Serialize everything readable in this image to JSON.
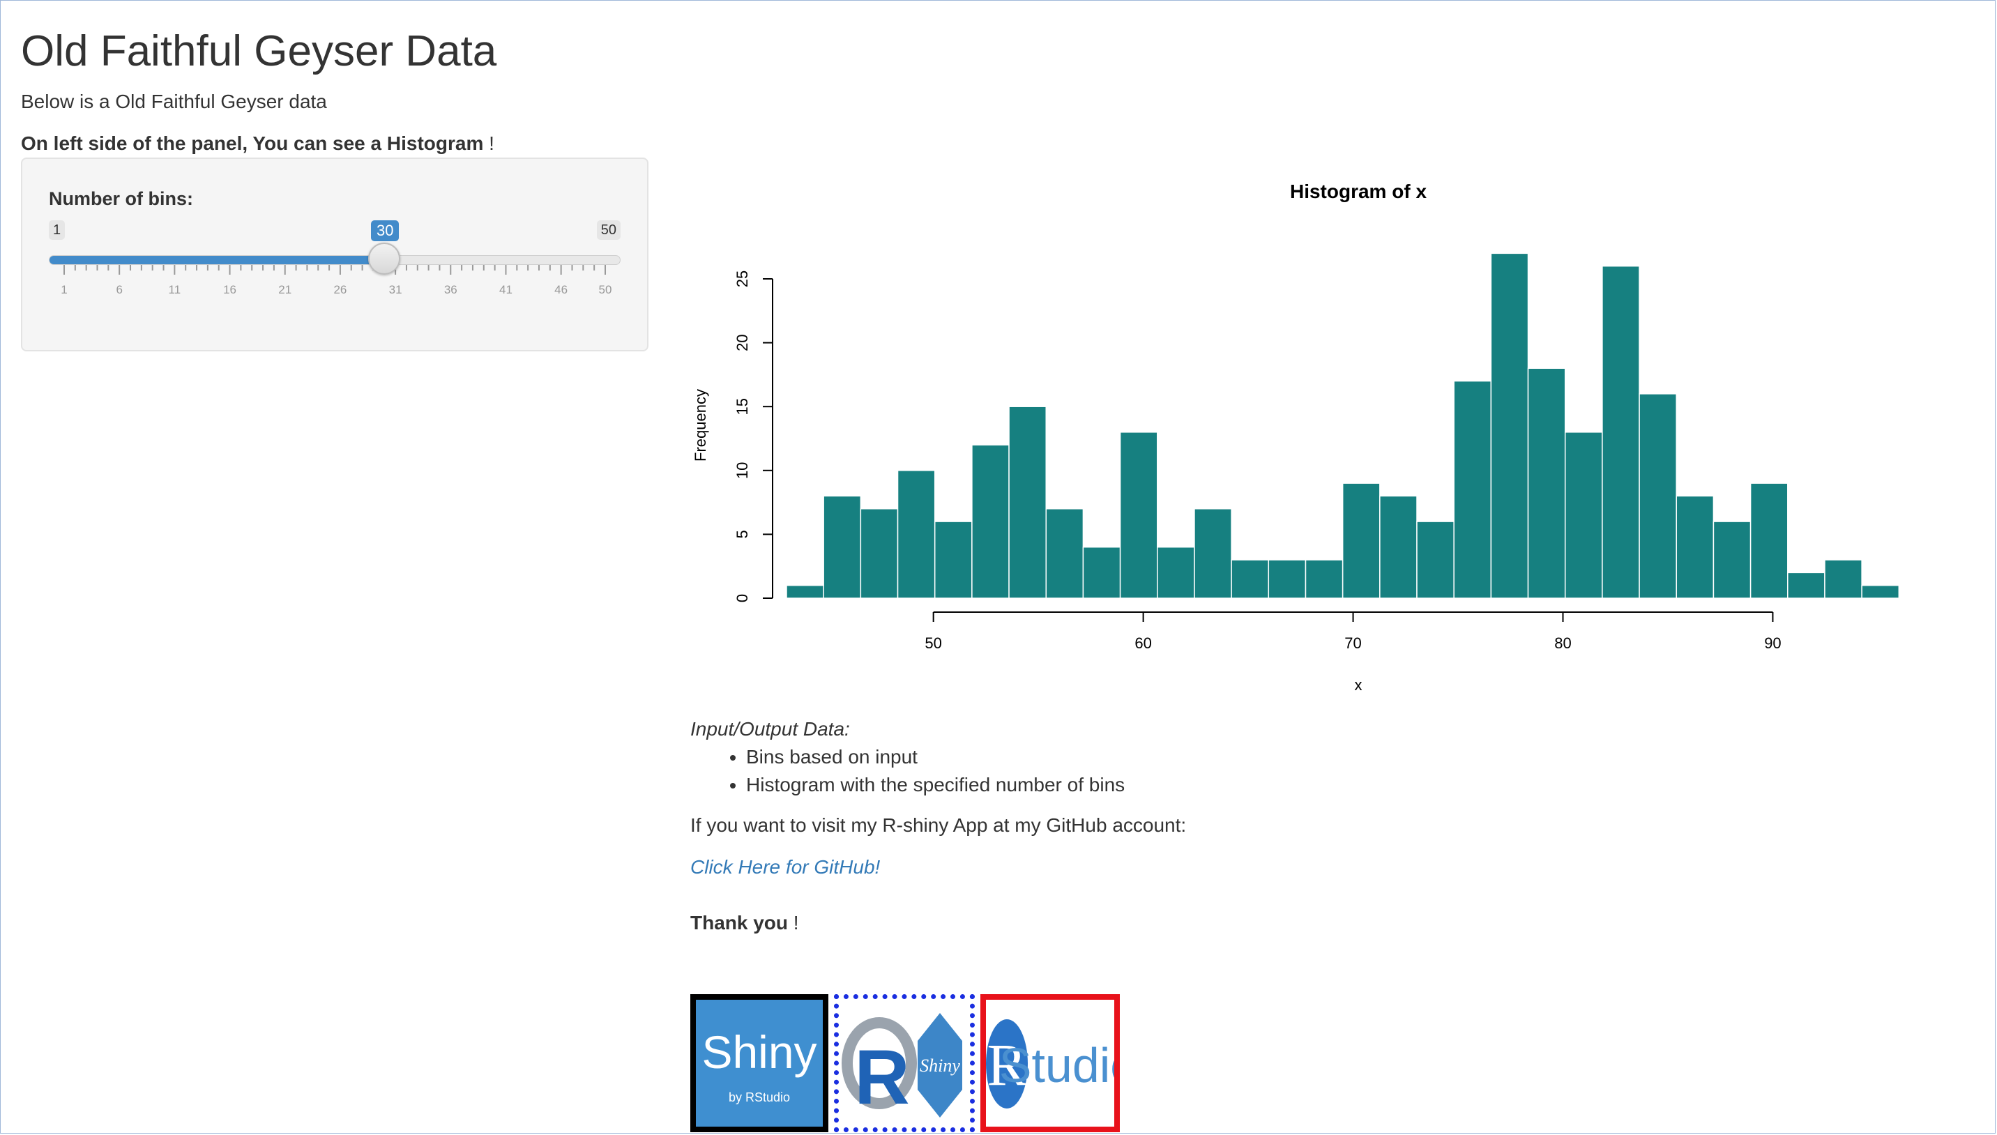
{
  "page": {
    "title": "Old Faithful Geyser Data",
    "subtitle": "Below is a Old Faithful Geyser data",
    "note_bold": "On left side of the panel, You can see a Histogram",
    "note_tail": " !"
  },
  "sidebar": {
    "slider": {
      "label": "Number of bins:",
      "min": "1",
      "max": "50",
      "value": "30",
      "fraction": 0.592,
      "tick_labels": [
        "1",
        "6",
        "11",
        "16",
        "21",
        "26",
        "31",
        "36",
        "41",
        "46",
        "50"
      ]
    }
  },
  "main": {
    "io_heading": "Input/Output Data:",
    "io_items": [
      "Bins based on input",
      "Histogram with the specified number of bins"
    ],
    "visit_text": "If you want to visit my R-shiny App at my GitHub account:",
    "github_link": "Click Here for GitHub!",
    "thanks_bold": "Thank you",
    "thanks_tail": " !"
  },
  "logos": {
    "shiny": {
      "main": "Shiny",
      "sub": "by RStudio"
    },
    "rshiny": {
      "r": "R",
      "shiny": "Shiny"
    },
    "rstudio": {
      "r": "R",
      "word": "Studio"
    }
  },
  "colors": {
    "bar_fill": "#168080",
    "slider_blue": "#428bca",
    "link": "#337ab7"
  },
  "chart_data": {
    "type": "bar",
    "title": "Histogram of x",
    "xlabel": "x",
    "ylabel": "Frequency",
    "xlim": [
      43,
      96
    ],
    "ylim": [
      0,
      27
    ],
    "x_ticks": [
      50,
      60,
      70,
      80,
      90
    ],
    "y_ticks": [
      0,
      5,
      10,
      15,
      20,
      25
    ],
    "bin_start": 43.0,
    "bin_width": 1.767,
    "values": [
      1,
      8,
      7,
      10,
      6,
      12,
      15,
      7,
      4,
      13,
      4,
      7,
      3,
      3,
      3,
      9,
      8,
      6,
      17,
      27,
      18,
      13,
      26,
      16,
      8,
      6,
      9,
      2,
      3,
      1
    ]
  }
}
